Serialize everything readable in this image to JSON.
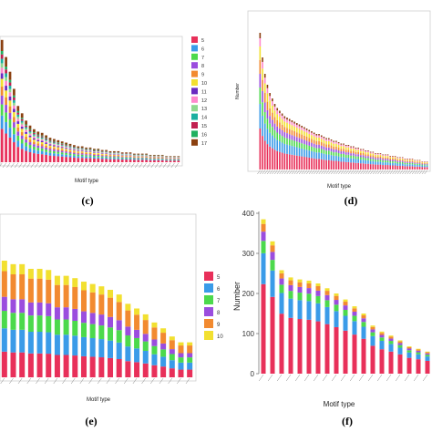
{
  "colors": {
    "palette_c": [
      "#e8305a",
      "#3a9be8",
      "#4cd94c",
      "#9b4dde",
      "#f28a30",
      "#f2e030",
      "#6a2ac0",
      "#ff88cc",
      "#8fd88f",
      "#1ab0a0",
      "#c02050",
      "#20b060",
      "#8b4010"
    ],
    "palette_d": [
      "#e8305a",
      "#3a9be8",
      "#4cd94c",
      "#9b4dde",
      "#f28a30",
      "#f2e030",
      "#ff88cc",
      "#8b4010"
    ],
    "palette_e": [
      "#e8305a",
      "#3a9be8",
      "#4cd94c",
      "#9b4dde",
      "#f28a30",
      "#f2e030"
    ],
    "palette_f": [
      "#e8305a",
      "#3a9be8",
      "#4cd94c",
      "#9b4dde",
      "#f28a30",
      "#f2e030"
    ]
  },
  "chart_data": [
    {
      "panel": "c",
      "type": "bar",
      "stacked": true,
      "xlabel": "Motif type",
      "caption": "(c)",
      "legend": [
        "5",
        "6",
        "7",
        "8",
        "9",
        "10",
        "11",
        "12",
        "13",
        "14",
        "15",
        "16",
        "17"
      ],
      "legend_position": "right",
      "bar_totals": [
        100,
        86,
        74,
        60,
        46,
        40,
        34,
        30,
        27,
        25,
        24,
        22,
        20,
        19,
        18,
        17,
        16,
        15,
        14,
        13,
        13,
        12,
        12,
        11,
        11,
        10,
        10,
        9,
        9,
        9,
        8,
        8,
        8,
        7,
        7,
        7,
        7,
        6,
        6,
        6,
        6,
        5,
        5,
        5,
        5
      ]
    },
    {
      "panel": "d",
      "type": "bar",
      "stacked": true,
      "xlabel": "Motif type",
      "ylabel": "Number",
      "caption": "(d)",
      "bar_totals": [
        100,
        82,
        70,
        62,
        56,
        52,
        48,
        45,
        43,
        41,
        39,
        38,
        37,
        36,
        35,
        34,
        33,
        32,
        31,
        30,
        29,
        28,
        27,
        26,
        26,
        25,
        24,
        23,
        23,
        22,
        21,
        21,
        20,
        19,
        19,
        18,
        18,
        17,
        17,
        16,
        16,
        15,
        15,
        14,
        14,
        13,
        13,
        12,
        12,
        12,
        11,
        11,
        11,
        10,
        10,
        10,
        9,
        9,
        9,
        8,
        8,
        8,
        8,
        7,
        7,
        7,
        6,
        6,
        6
      ]
    },
    {
      "panel": "e",
      "type": "bar",
      "stacked": true,
      "xlabel": "Motif type",
      "caption": "(e)",
      "legend": [
        "5",
        "6",
        "7",
        "8",
        "9",
        "10"
      ],
      "legend_position": "right",
      "bar_totals": [
        100,
        97,
        97,
        93,
        93,
        92,
        87,
        87,
        85,
        82,
        80,
        78,
        75,
        71,
        63,
        59,
        54,
        47,
        42,
        35,
        30,
        30
      ]
    },
    {
      "panel": "f",
      "type": "bar",
      "stacked": true,
      "xlabel": "Motif type",
      "ylabel": "Number",
      "caption": "(f)",
      "ylim": [
        0,
        400
      ],
      "yticks": [
        "0",
        "100",
        "200",
        "300",
        "400"
      ],
      "bar_totals": [
        385,
        330,
        258,
        240,
        235,
        232,
        225,
        213,
        200,
        185,
        168,
        150,
        120,
        105,
        95,
        83,
        68,
        62,
        55
      ]
    }
  ]
}
